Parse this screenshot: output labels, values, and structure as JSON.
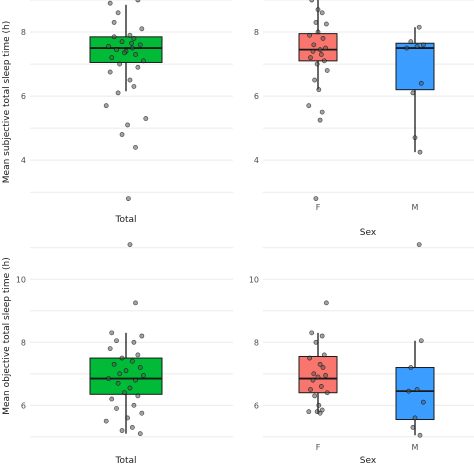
{
  "colors": {
    "total": "#00BA38",
    "F": "#F8766D",
    "M": "#3A9DFF"
  },
  "chart_data": [
    {
      "type": "box",
      "ylabel": "Mean subjective total sleep time (h)",
      "xlabel": "",
      "ylim": [
        2.6,
        9.0
      ],
      "yticks": [
        4,
        6,
        8
      ],
      "grid": true,
      "categories": [
        "Total"
      ],
      "boxes": [
        {
          "category": "Total",
          "q1": 7.05,
          "median": 7.5,
          "q3": 7.85,
          "whisker_low": 6.15,
          "whisker_high": 8.85,
          "color_key": "total"
        }
      ],
      "points": [
        {
          "category": "Total",
          "jitter": [
            -0.2,
            0.15,
            -0.1,
            0.2,
            0.05,
            -0.15,
            0.1,
            -0.05,
            0.18,
            -0.22,
            0.08,
            -0.12,
            0.0,
            0.12,
            -0.18,
            0.22,
            -0.08,
            0.15,
            -0.2,
            0.05,
            0.1,
            -0.1,
            -0.25,
            0.25,
            0.02,
            -0.05,
            0.12,
            -0.15,
            0.07,
            -0.02,
            0.03
          ],
          "values": [
            8.9,
            9.0,
            8.6,
            8.1,
            7.9,
            7.85,
            7.8,
            7.7,
            7.6,
            7.55,
            7.5,
            7.45,
            7.4,
            7.3,
            7.2,
            7.1,
            7.0,
            6.9,
            6.75,
            6.5,
            6.3,
            6.1,
            5.7,
            5.3,
            5.1,
            4.8,
            4.4,
            8.3,
            7.65,
            7.35,
            2.8
          ]
        }
      ]
    },
    {
      "type": "box",
      "ylabel": "",
      "xlabel": "Sex",
      "ylim": [
        2.6,
        9.0
      ],
      "yticks": [
        4,
        6,
        8
      ],
      "grid": true,
      "categories": [
        "F",
        "M"
      ],
      "boxes": [
        {
          "category": "F",
          "q1": 7.1,
          "median": 7.45,
          "q3": 7.95,
          "whisker_low": 6.2,
          "whisker_high": 9.0,
          "color_key": "F"
        },
        {
          "category": "M",
          "q1": 6.2,
          "median": 7.5,
          "q3": 7.65,
          "whisker_low": 4.25,
          "whisker_high": 8.15,
          "color_key": "M"
        }
      ],
      "points": [
        {
          "category": "F",
          "jitter": [
            -0.15,
            0.1,
            -0.05,
            0.2,
            0.0,
            -0.2,
            0.12,
            -0.1,
            0.18,
            0.05,
            -0.12,
            0.08,
            -0.18,
            0.15,
            -0.02,
            0.22,
            -0.08,
            0.02,
            -0.22,
            0.1,
            0.05,
            -0.05,
            0.0
          ],
          "values": [
            9.0,
            8.6,
            8.3,
            8.25,
            8.0,
            7.9,
            7.8,
            7.6,
            7.5,
            7.45,
            7.4,
            7.3,
            7.2,
            7.1,
            7.0,
            6.8,
            6.5,
            6.2,
            5.7,
            5.5,
            5.25,
            2.8,
            8.7
          ]
        },
        {
          "category": "M",
          "jitter": [
            0.1,
            -0.1,
            0.2,
            -0.2,
            0.05,
            0.15,
            -0.05,
            0.0,
            0.12
          ],
          "values": [
            8.15,
            7.7,
            7.6,
            7.5,
            7.55,
            6.4,
            6.1,
            4.7,
            4.25
          ]
        }
      ]
    },
    {
      "type": "box",
      "ylabel": "Mean objective total sleep time (h)",
      "xlabel": "Total",
      "ylim": [
        4.9,
        11.5
      ],
      "yticks": [
        6,
        8,
        10
      ],
      "grid": true,
      "categories": [
        "Total"
      ],
      "boxes": [
        {
          "category": "Total",
          "q1": 6.35,
          "median": 6.85,
          "q3": 7.5,
          "whisker_low": 5.1,
          "whisker_high": 8.3,
          "color_key": "total"
        }
      ],
      "points": [
        {
          "category": "Total",
          "jitter": [
            0.05,
            0.12,
            -0.18,
            0.2,
            -0.12,
            0.1,
            -0.2,
            0.15,
            -0.05,
            0.08,
            -0.15,
            0.18,
            0.0,
            -0.08,
            0.22,
            -0.22,
            0.12,
            -0.1,
            0.05,
            -0.02,
            0.15,
            -0.18,
            0.1,
            -0.12,
            0.2,
            0.02,
            -0.25,
            0.08,
            0.18,
            -0.05
          ],
          "values": [
            11.1,
            9.25,
            8.3,
            8.2,
            8.05,
            8.0,
            7.8,
            7.6,
            7.5,
            7.4,
            7.3,
            7.2,
            7.1,
            7.0,
            6.95,
            6.85,
            6.8,
            6.7,
            6.55,
            6.4,
            6.3,
            6.2,
            6.0,
            5.9,
            5.75,
            5.6,
            5.5,
            5.3,
            5.1,
            5.2
          ]
        }
      ]
    },
    {
      "type": "box",
      "ylabel": "",
      "xlabel": "Sex",
      "ylim": [
        4.9,
        11.5
      ],
      "yticks": [
        6,
        8,
        10
      ],
      "grid": true,
      "categories": [
        "F",
        "M"
      ],
      "boxes": [
        {
          "category": "F",
          "q1": 6.4,
          "median": 6.85,
          "q3": 7.55,
          "whisker_low": 5.75,
          "whisker_high": 8.3,
          "color_key": "F"
        },
        {
          "category": "M",
          "q1": 5.55,
          "median": 6.45,
          "q3": 7.2,
          "whisker_low": 5.05,
          "whisker_high": 8.05,
          "color_key": "M"
        }
      ],
      "points": [
        {
          "category": "F",
          "jitter": [
            0.2,
            -0.15,
            0.1,
            -0.05,
            0.15,
            -0.2,
            0.05,
            0.12,
            -0.1,
            0.18,
            0.0,
            -0.12,
            0.08,
            -0.18,
            0.22,
            -0.08,
            0.02,
            0.1,
            -0.22,
            0.05,
            -0.02
          ],
          "values": [
            9.25,
            8.3,
            8.2,
            8.0,
            7.6,
            7.5,
            7.3,
            7.2,
            7.0,
            6.95,
            6.9,
            6.8,
            6.6,
            6.5,
            6.4,
            6.3,
            6.0,
            5.85,
            5.8,
            5.75,
            5.8
          ]
        },
        {
          "category": "M",
          "jitter": [
            0.1,
            0.15,
            -0.1,
            0.05,
            -0.15,
            0.2,
            0.0,
            -0.05,
            0.12
          ],
          "values": [
            11.1,
            8.05,
            7.2,
            6.5,
            6.45,
            6.1,
            5.6,
            5.3,
            5.05
          ]
        }
      ]
    }
  ]
}
